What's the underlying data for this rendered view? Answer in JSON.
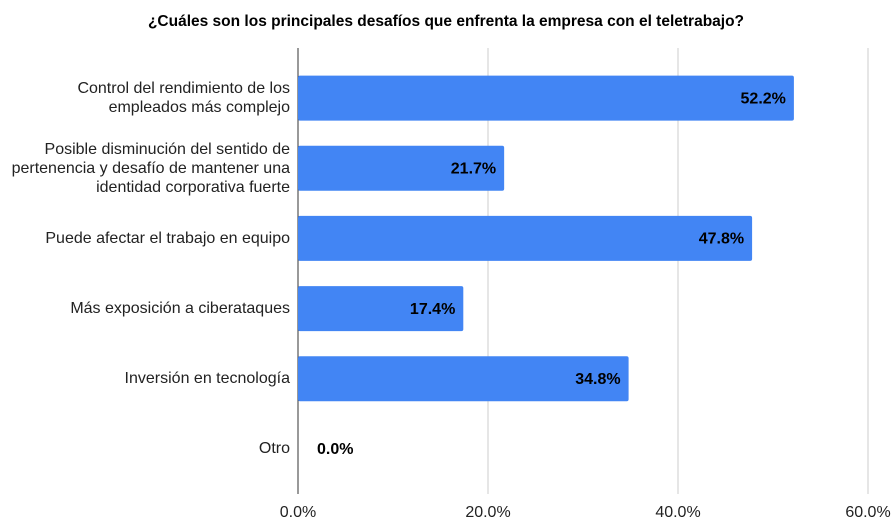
{
  "chart_data": {
    "type": "bar",
    "orientation": "horizontal",
    "title": "¿Cuáles son los principales desafíos que enfrenta la empresa con el teletrabajo?",
    "categories": [
      "Control del rendimiento de los empleados más complejo",
      "Posible disminución del sentido de pertenencia y desafío de mantener una identidad corporativa fuerte",
      "Puede afectar el trabajo en equipo",
      "Más exposición a ciberataques",
      "Inversión en tecnología",
      "Otro"
    ],
    "values": [
      52.2,
      21.7,
      47.8,
      17.4,
      34.8,
      0.0
    ],
    "value_labels": [
      "52.2%",
      "21.7%",
      "47.8%",
      "17.4%",
      "34.8%",
      "0.0%"
    ],
    "color": "#4285f4",
    "xlim": [
      0,
      60
    ],
    "xticks": [
      {
        "value": 0,
        "label": "0.0%"
      },
      {
        "value": 20,
        "label": "20.0%"
      },
      {
        "value": 40,
        "label": "40.0%"
      },
      {
        "value": 60,
        "label": "60.0%"
      }
    ],
    "grid": true
  }
}
